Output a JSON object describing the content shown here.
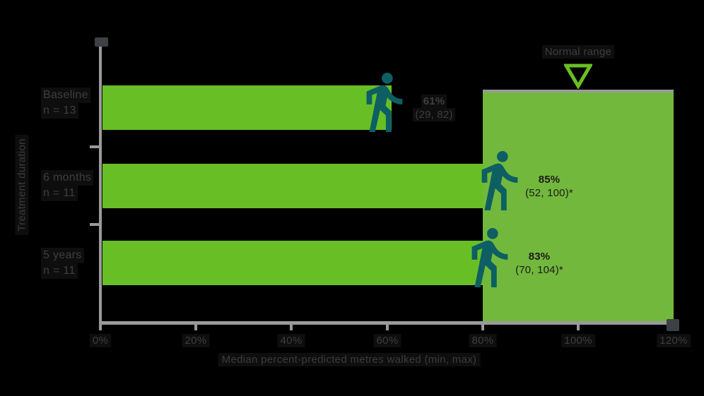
{
  "chart_data": {
    "type": "bar",
    "orientation": "horizontal",
    "title": "",
    "xlabel": "Median percent-predicted metres walked (min, max)",
    "ylabel": "Treatment duration",
    "xlim": [
      0,
      120
    ],
    "grid": false,
    "x_ticks": [
      {
        "label": "0%",
        "value": 0
      },
      {
        "label": "20%",
        "value": 20
      },
      {
        "label": "40%",
        "value": 40
      },
      {
        "label": "60%",
        "value": 60
      },
      {
        "label": "80%",
        "value": 80
      },
      {
        "label": "100%",
        "value": 100
      },
      {
        "label": "120%",
        "value": 120
      }
    ],
    "categories": [
      "Baseline",
      "6 months",
      "5 years"
    ],
    "category_sublabels": [
      "n = 13",
      "n = 11",
      "n = 11"
    ],
    "values": [
      61,
      85,
      83
    ],
    "value_labels": [
      "61%",
      "85%",
      "83%"
    ],
    "range_labels": [
      "(29, 82)",
      "(52, 100)*",
      "(70, 104)*"
    ],
    "normal_range": {
      "label": "Normal range",
      "from": 80,
      "to": 120,
      "marker_at": 100
    }
  },
  "colors": {
    "background": "#000000",
    "bar_green": "#67bf25",
    "normal_range_green": "#72b83c",
    "axis_gray": "#9a9a9a",
    "axis_cap_dark": "#3d4044",
    "walker_teal": "#0d5f63",
    "arrow_green": "#68c022",
    "dim_text": "#3e3e3e",
    "on_green_text": "#1c1c1c"
  },
  "icons": {
    "walker": "walking-person-icon",
    "arrow": "normal-range-down-arrow-icon"
  }
}
